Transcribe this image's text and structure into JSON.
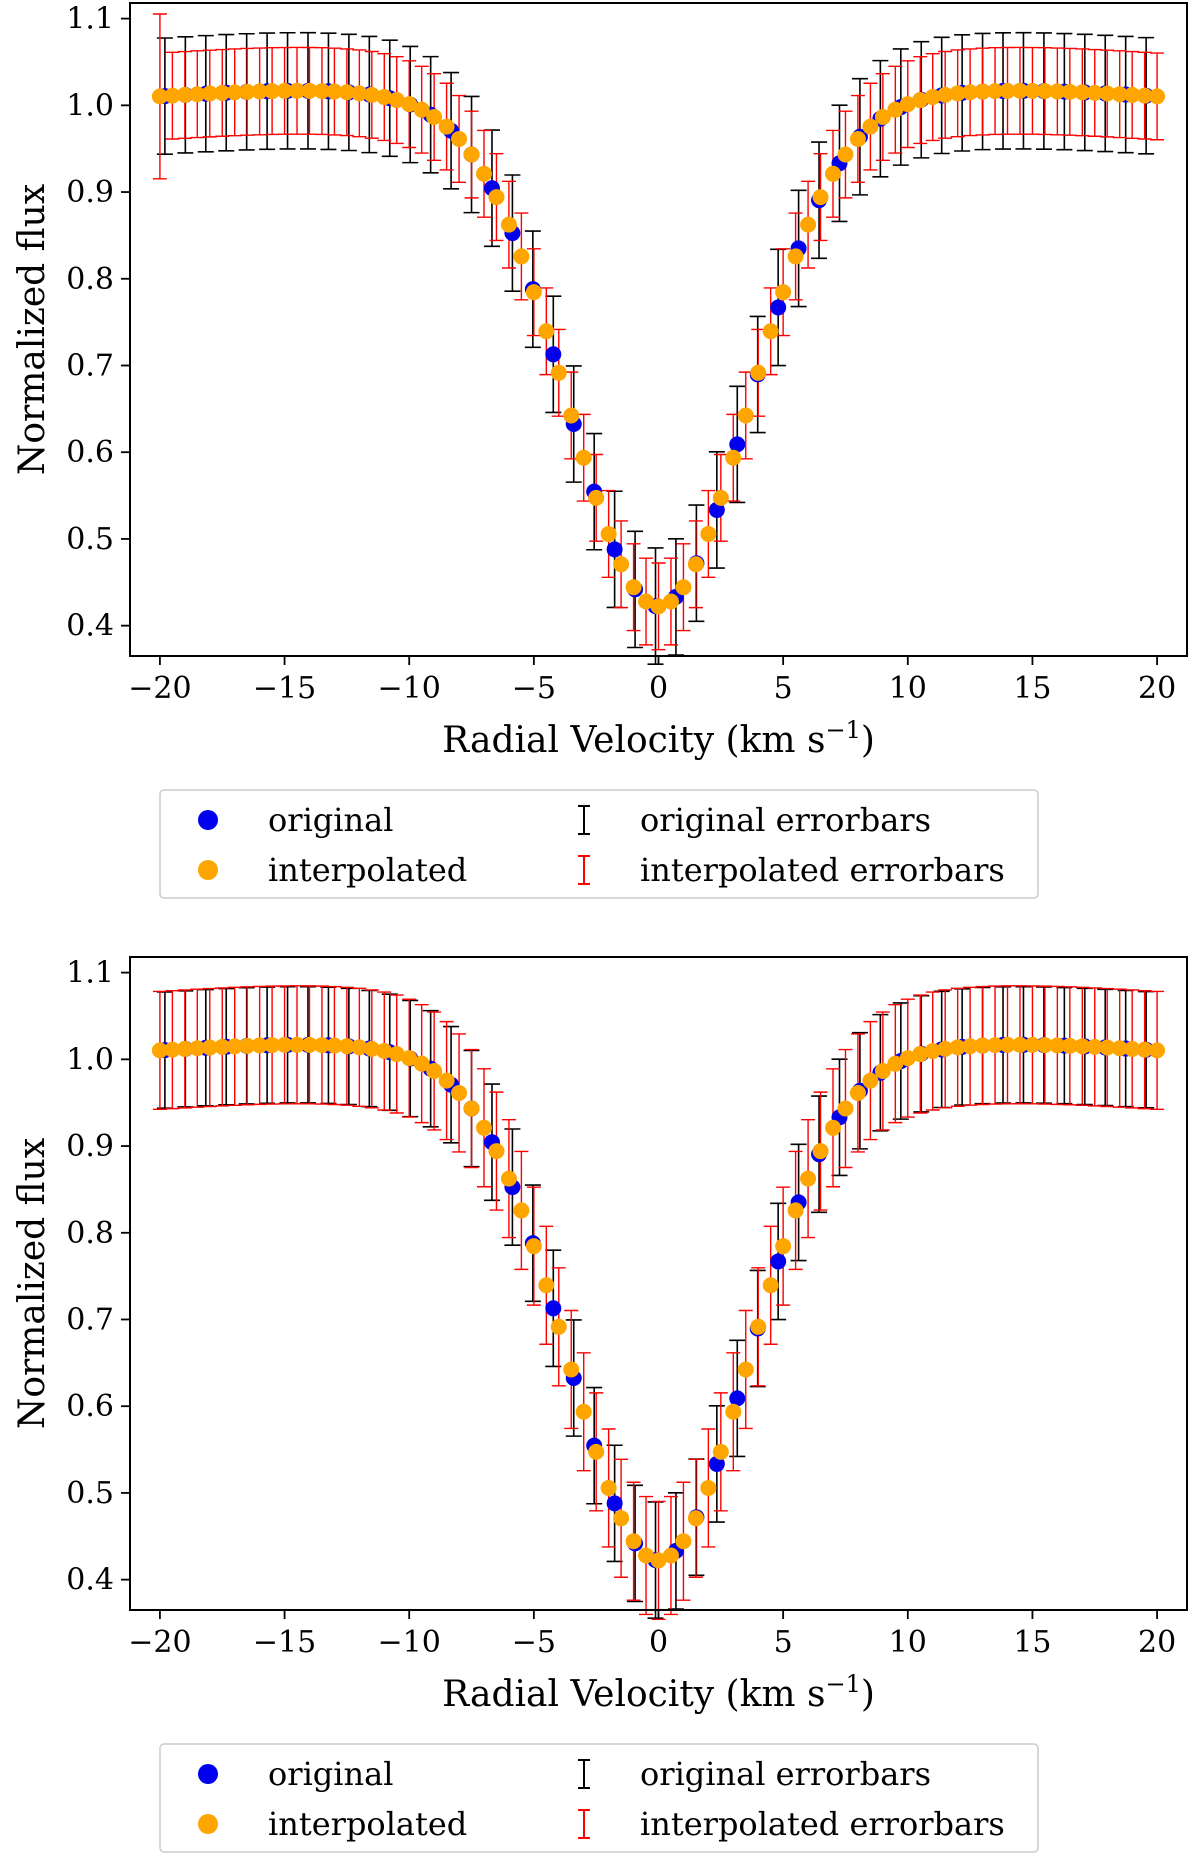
{
  "chart_data": [
    {
      "type": "scatter",
      "panel": "top",
      "xlabel": "Radial Velocity (km s",
      "xlabel_sup": "−1",
      "xlabel_close": ")",
      "ylabel": "Normalized flux",
      "xlim": [
        -21.2,
        21.2
      ],
      "ylim": [
        0.365,
        1.118
      ],
      "xticks": [
        -20,
        -15,
        -10,
        -5,
        0,
        5,
        10,
        15,
        20
      ],
      "xtick_labels": [
        "−20",
        "−15",
        "−10",
        "−5",
        "0",
        "5",
        "10",
        "15",
        "20"
      ],
      "yticks": [
        0.4,
        0.5,
        0.6,
        0.7,
        0.8,
        0.9,
        1.0,
        1.1
      ],
      "ytick_labels": [
        "0.4",
        "0.5",
        "0.6",
        "0.7",
        "0.8",
        "0.9",
        "1.0",
        "1.1"
      ],
      "grid": false,
      "legend_position": "below",
      "legend": [
        "original",
        "interpolated",
        "original errorbars",
        "interpolated errorbars"
      ],
      "colors": {
        "original": "#0000ee",
        "interpolated": "#ffa500",
        "original_err": "#000000",
        "interpolated_err": "#ff0000"
      },
      "profile": {
        "continuum": 1.0,
        "depth": 0.58,
        "sigma": 3.6,
        "wing_amp": 0.017,
        "wing_center": 14.0,
        "wing_width": 6.0
      },
      "original_x": {
        "start": -19.8,
        "end": 20.2,
        "step": 0.82
      },
      "interpolated_x": {
        "start": -20.0,
        "end": 20.0,
        "step": 0.5
      },
      "original_err": 0.067,
      "interpolated_err": 0.05,
      "interpolated_err_edge": 0.095
    },
    {
      "type": "scatter",
      "panel": "bottom",
      "xlabel": "Radial Velocity (km s",
      "xlabel_sup": "−1",
      "xlabel_close": ")",
      "ylabel": "Normalized flux",
      "xlim": [
        -21.2,
        21.2
      ],
      "ylim": [
        0.365,
        1.118
      ],
      "xticks": [
        -20,
        -15,
        -10,
        -5,
        0,
        5,
        10,
        15,
        20
      ],
      "xtick_labels": [
        "−20",
        "−15",
        "−10",
        "−5",
        "0",
        "5",
        "10",
        "15",
        "20"
      ],
      "yticks": [
        0.4,
        0.5,
        0.6,
        0.7,
        0.8,
        0.9,
        1.0,
        1.1
      ],
      "ytick_labels": [
        "0.4",
        "0.5",
        "0.6",
        "0.7",
        "0.8",
        "0.9",
        "1.0",
        "1.1"
      ],
      "grid": false,
      "legend_position": "below",
      "legend": [
        "original",
        "interpolated",
        "original errorbars",
        "interpolated errorbars"
      ],
      "colors": {
        "original": "#0000ee",
        "interpolated": "#ffa500",
        "original_err": "#000000",
        "interpolated_err": "#ff0000"
      },
      "profile": {
        "continuum": 1.0,
        "depth": 0.58,
        "sigma": 3.6,
        "wing_amp": 0.017,
        "wing_center": 14.0,
        "wing_width": 6.0
      },
      "original_x": {
        "start": -19.8,
        "end": 20.2,
        "step": 0.82
      },
      "interpolated_x": {
        "start": -20.0,
        "end": 20.0,
        "step": 0.5
      },
      "original_err": 0.067,
      "interpolated_err": 0.068,
      "interpolated_err_edge": 0.068
    }
  ]
}
